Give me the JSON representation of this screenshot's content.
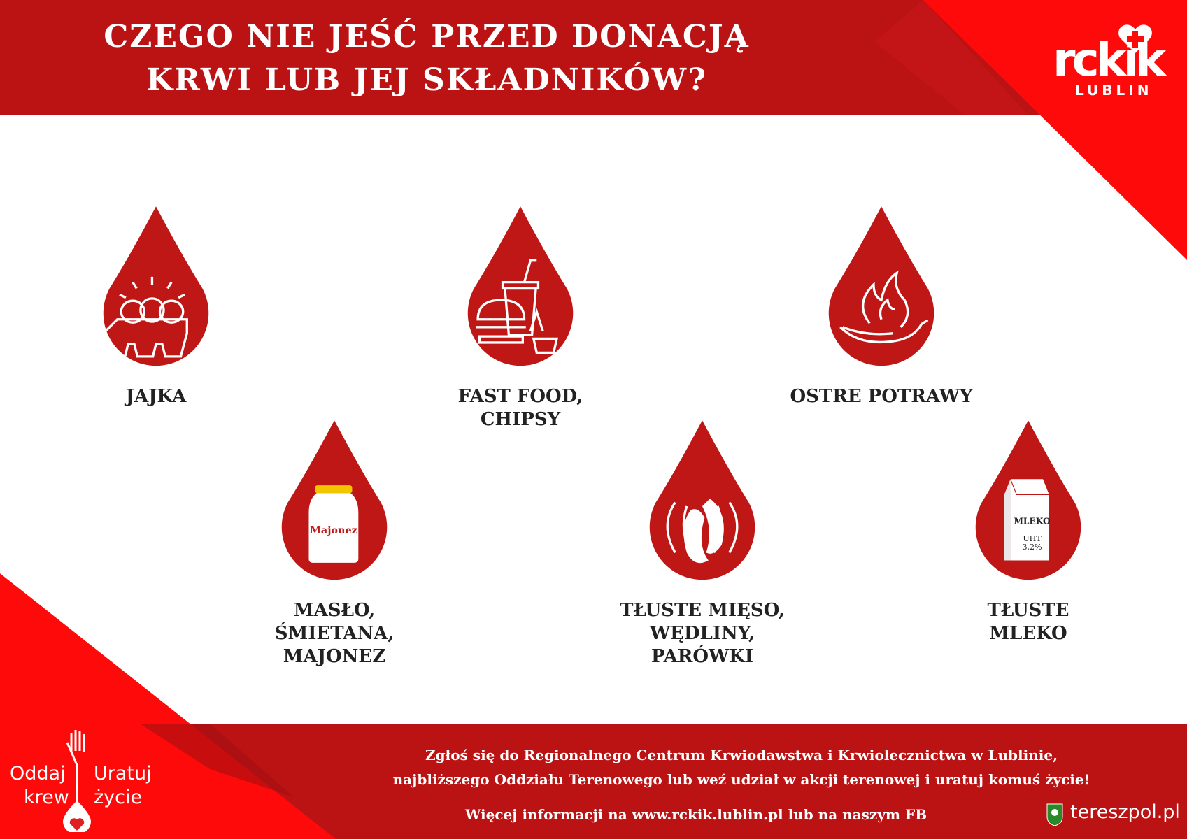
{
  "header": {
    "title_line1": "CZEGO NIE JEŚĆ PRZED DONACJĄ",
    "title_line2": "KRWI LUB JEJ SKŁADNIKÓW?"
  },
  "logo": {
    "text": "rckik",
    "city": "LUBLIN"
  },
  "items": [
    {
      "label_lines": [
        "JAJKA"
      ],
      "icon": "eggs-carton-icon"
    },
    {
      "label_lines": [
        "FAST FOOD,",
        "CHIPSY"
      ],
      "icon": "fast-food-icon"
    },
    {
      "label_lines": [
        "OSTRE POTRAWY"
      ],
      "icon": "chili-fire-icon"
    },
    {
      "label_lines": [
        "MASŁO,",
        "ŚMIETANA,",
        "MAJONEZ"
      ],
      "icon": "mayonnaise-jar-icon",
      "jar_text": "Majonez"
    },
    {
      "label_lines": [
        "TŁUSTE MIĘSO,",
        "WĘDLINY,",
        "PARÓWKI"
      ],
      "icon": "sausages-icon"
    },
    {
      "label_lines": [
        "TŁUSTE",
        "MLEKO"
      ],
      "icon": "milk-carton-icon",
      "carton_text": "MLEKO",
      "carton_sub1": "UHT",
      "carton_sub2": "3,2%"
    }
  ],
  "footer": {
    "line1": "Zgłoś się do Regionalnego Centrum Krwiodawstwa i Krwiolecznictwa w Lublinie,",
    "line2": "najbliższego Oddziału Terenowego lub weź udział w akcji terenowej i uratuj komuś życie!",
    "line3": "Więcej informacji na www.rckik.lublin.pl lub na naszym FB",
    "campaign": {
      "left1": "Oddaj",
      "left2": "krew",
      "right1": "Uratuj",
      "right2": "życie"
    },
    "source": "tereszpol.pl"
  },
  "colors": {
    "dark_red": "#bb1213",
    "bright_red": "#ff0a0a",
    "drop": "#bf1616",
    "text": "#222222"
  }
}
